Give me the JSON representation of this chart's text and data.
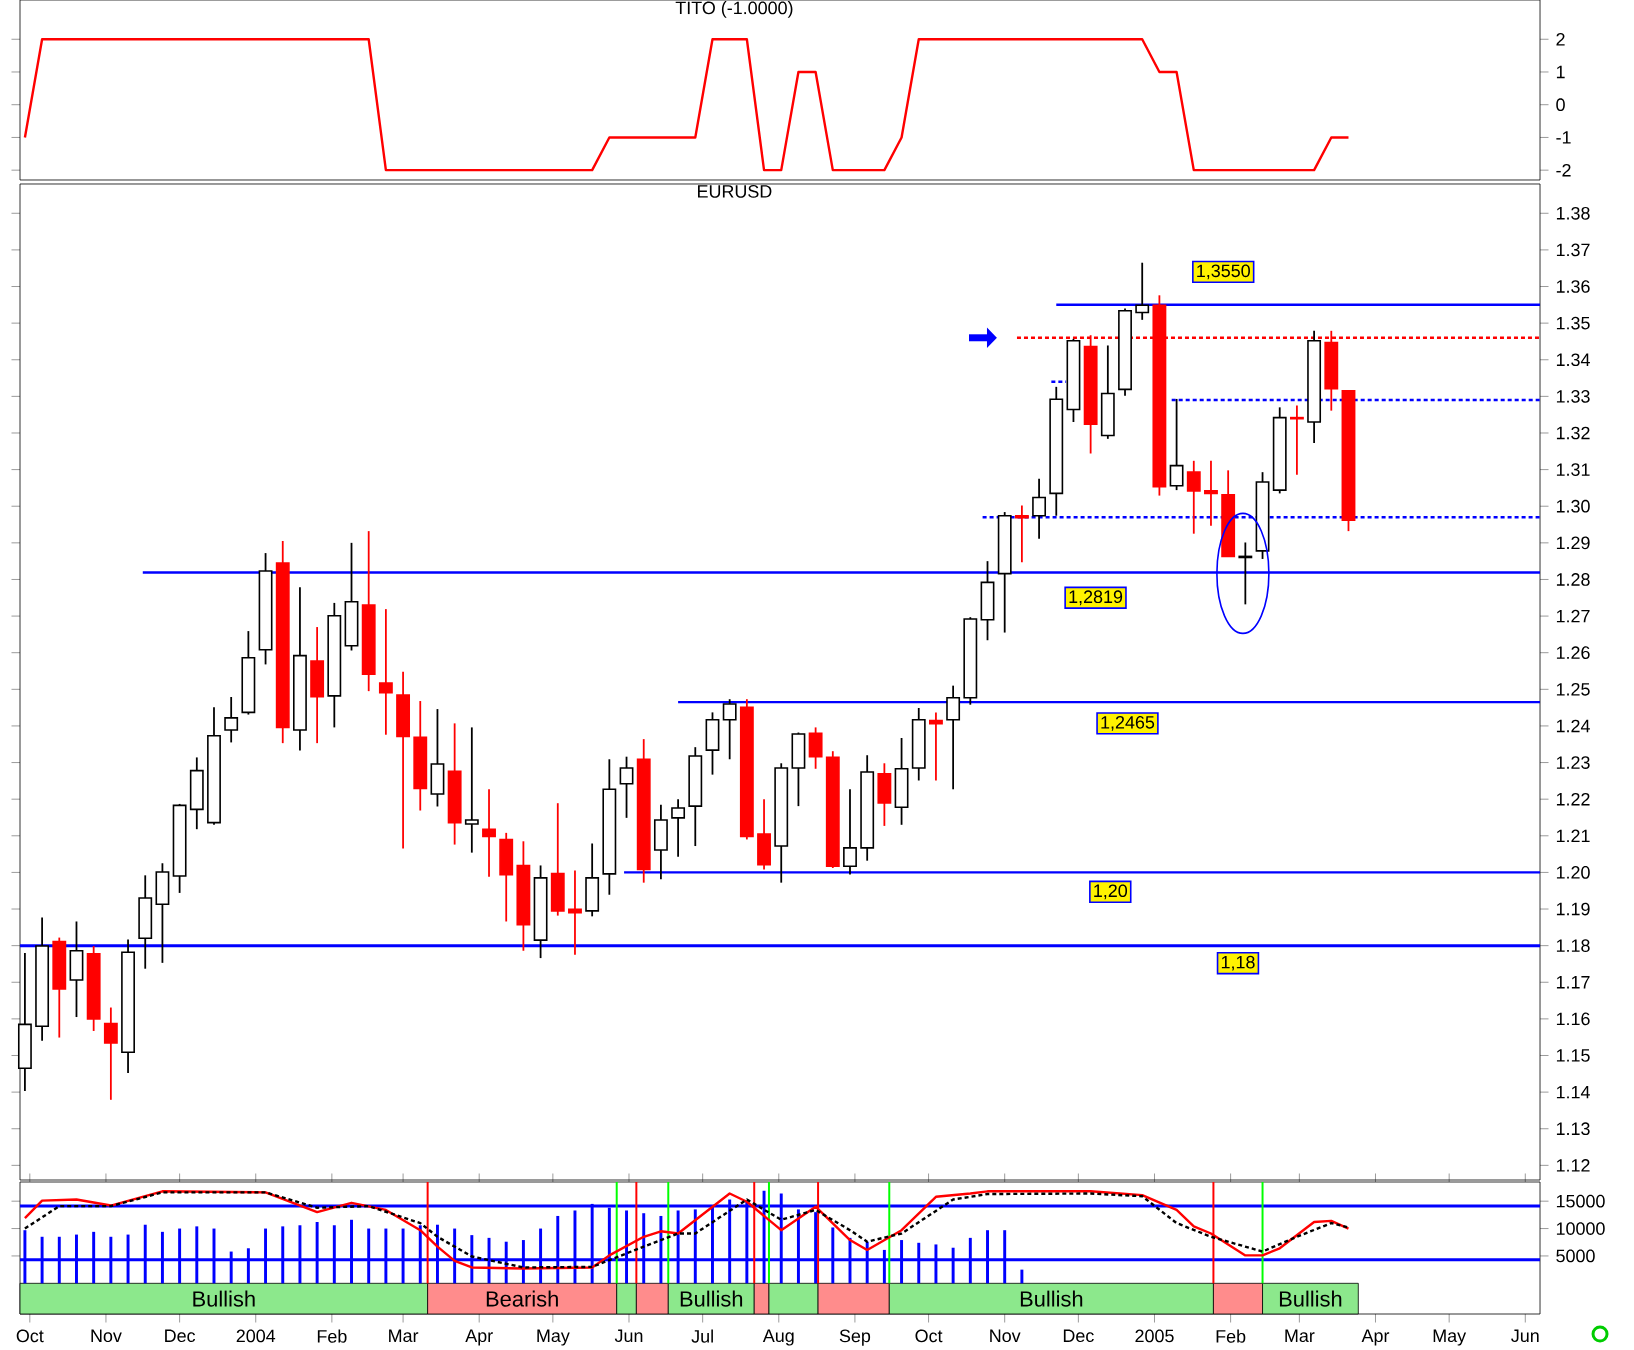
{
  "chart_data": [
    {
      "type": "line",
      "title": "TITO (-1.0000)",
      "tick_labels": "y",
      "xlim": [
        "2003-09-27",
        "2005-06-07"
      ],
      "ylim": [
        -2.3,
        3.2
      ],
      "yticks": [
        -2,
        -1,
        0,
        1,
        2
      ],
      "series": [
        {
          "color": "#ff0000",
          "x": [
            "2003-09-29",
            "2003-10-06",
            "2004-02-16",
            "2004-02-23",
            "2004-05-17",
            "2004-05-24",
            "2004-06-28",
            "2004-07-05",
            "2004-07-19",
            "2004-07-26",
            "2004-08-02",
            "2004-08-09",
            "2004-08-16",
            "2004-08-23",
            "2004-09-13",
            "2004-09-20",
            "2004-09-27",
            "2004-12-27",
            "2005-01-03",
            "2005-01-10",
            "2005-01-17",
            "2005-03-07",
            "2005-03-14",
            "2005-03-21"
          ],
          "values": [
            -1,
            2,
            2,
            -2,
            -2,
            -1,
            -1,
            2,
            2,
            -2,
            -2,
            1,
            1,
            -2,
            -2,
            -1,
            2,
            2,
            1,
            1,
            -2,
            -2,
            -1,
            -1
          ]
        }
      ]
    },
    {
      "type": "candlestick",
      "title": "EURUSD",
      "tick_labels": "y",
      "xlim": [
        "2003-09-27",
        "2005-06-07"
      ],
      "ylim": [
        1.116,
        1.388
      ],
      "yticks": [
        1.12,
        1.13,
        1.14,
        1.15,
        1.16,
        1.17,
        1.18,
        1.19,
        {
          "value": 1.2,
          "label": "1.20"
        },
        1.21,
        1.22,
        1.23,
        1.24,
        1.25,
        1.26,
        1.27,
        1.28,
        1.29,
        {
          "value": 1.3,
          "label": "1.30"
        },
        1.31,
        1.32,
        1.33,
        1.34,
        1.35,
        1.36,
        1.37,
        1.38
      ],
      "x": [
        "2003-09-29",
        "2003-10-06",
        "2003-10-13",
        "2003-10-20",
        "2003-10-27",
        "2003-11-03",
        "2003-11-10",
        "2003-11-17",
        "2003-11-24",
        "2003-12-01",
        "2003-12-08",
        "2003-12-15",
        "2003-12-22",
        "2003-12-29",
        "2004-01-05",
        "2004-01-12",
        "2004-01-19",
        "2004-01-26",
        "2004-02-02",
        "2004-02-09",
        "2004-02-16",
        "2004-02-23",
        "2004-03-01",
        "2004-03-08",
        "2004-03-15",
        "2004-03-22",
        "2004-03-29",
        "2004-04-05",
        "2004-04-12",
        "2004-04-19",
        "2004-04-26",
        "2004-05-03",
        "2004-05-10",
        "2004-05-17",
        "2004-05-24",
        "2004-05-31",
        "2004-06-07",
        "2004-06-14",
        "2004-06-21",
        "2004-06-28",
        "2004-07-05",
        "2004-07-12",
        "2004-07-19",
        "2004-07-26",
        "2004-08-02",
        "2004-08-09",
        "2004-08-16",
        "2004-08-23",
        "2004-08-30",
        "2004-09-06",
        "2004-09-13",
        "2004-09-20",
        "2004-09-27",
        "2004-10-04",
        "2004-10-11",
        "2004-10-18",
        "2004-10-25",
        "2004-11-01",
        "2004-11-08",
        "2004-11-15",
        "2004-11-22",
        "2004-11-29",
        "2004-12-06",
        "2004-12-13",
        "2004-12-20",
        "2004-12-27",
        "2005-01-03",
        "2005-01-10",
        "2005-01-17",
        "2005-01-24",
        "2005-01-31",
        "2005-02-07",
        "2005-02-14",
        "2005-02-21",
        "2005-02-28",
        "2005-03-07",
        "2005-03-14",
        "2005-03-21"
      ],
      "ohlc": [
        [
          1.1465,
          1.178,
          1.1403,
          1.1585
        ],
        [
          1.158,
          1.1877,
          1.154,
          1.1799
        ],
        [
          1.1811,
          1.1822,
          1.1549,
          1.1682
        ],
        [
          1.1706,
          1.1866,
          1.1605,
          1.1786
        ],
        [
          1.1778,
          1.1799,
          1.1567,
          1.16
        ],
        [
          1.1587,
          1.1631,
          1.1379,
          1.1534
        ],
        [
          1.1509,
          1.1817,
          1.1452,
          1.1782
        ],
        [
          1.182,
          1.1992,
          1.1737,
          1.193
        ],
        [
          1.1913,
          1.2025,
          1.1753,
          1.2001
        ],
        [
          1.199,
          1.2187,
          1.1944,
          1.2183
        ],
        [
          1.2172,
          1.2314,
          1.2118,
          1.2278
        ],
        [
          1.2136,
          1.2451,
          1.213,
          1.2373
        ],
        [
          1.2389,
          1.2479,
          1.2355,
          1.2422
        ],
        [
          1.2437,
          1.2659,
          1.2431,
          1.2586
        ],
        [
          1.2608,
          1.2872,
          1.2568,
          1.2823
        ],
        [
          1.2845,
          1.2905,
          1.2353,
          1.2396
        ],
        [
          1.2389,
          1.2779,
          1.2333,
          1.2592
        ],
        [
          1.2577,
          1.267,
          1.2353,
          1.248
        ],
        [
          1.2482,
          1.2736,
          1.2396,
          1.2701
        ],
        [
          1.2619,
          1.29,
          1.2606,
          1.2739
        ],
        [
          1.273,
          1.2932,
          1.2495,
          1.2541
        ],
        [
          1.2517,
          1.2719,
          1.2376,
          1.2491
        ],
        [
          1.2484,
          1.2548,
          1.2065,
          1.2371
        ],
        [
          1.2369,
          1.2468,
          1.2169,
          1.2229
        ],
        [
          1.2214,
          1.2446,
          1.218,
          1.2296
        ],
        [
          1.2276,
          1.2407,
          1.2076,
          1.2136
        ],
        [
          1.2132,
          1.2396,
          1.2054,
          1.2143
        ],
        [
          1.2118,
          1.2227,
          1.1988,
          1.2098
        ],
        [
          1.209,
          1.2108,
          1.1866,
          1.1994
        ],
        [
          1.2019,
          1.2085,
          1.1786,
          1.1857
        ],
        [
          1.1815,
          1.2019,
          1.1766,
          1.1985
        ],
        [
          1.1997,
          1.2189,
          1.1882,
          1.1895
        ],
        [
          1.1899,
          1.2005,
          1.1775,
          1.189
        ],
        [
          1.1895,
          1.2079,
          1.188,
          1.1985
        ],
        [
          1.1996,
          1.2309,
          1.1939,
          1.2227
        ],
        [
          1.2242,
          1.2316,
          1.2149,
          1.2285
        ],
        [
          1.2309,
          1.2364,
          1.1972,
          1.2008
        ],
        [
          1.2061,
          1.2185,
          1.1981,
          1.2143
        ],
        [
          1.2149,
          1.22,
          1.2043,
          1.2176
        ],
        [
          1.2181,
          1.2342,
          1.2072,
          1.2318
        ],
        [
          1.2334,
          1.2437,
          1.2267,
          1.2417
        ],
        [
          1.2417,
          1.2473,
          1.2309,
          1.246
        ],
        [
          1.2451,
          1.2473,
          1.209,
          1.2098
        ],
        [
          1.2105,
          1.22,
          1.2008,
          1.2021
        ],
        [
          1.2072,
          1.2298,
          1.1972,
          1.2285
        ],
        [
          1.2285,
          1.2382,
          1.2181,
          1.2378
        ],
        [
          1.238,
          1.2396,
          1.2283,
          1.2316
        ],
        [
          1.2314,
          1.2331,
          1.2012,
          1.2017
        ],
        [
          1.2017,
          1.2227,
          1.1994,
          1.2067
        ],
        [
          1.2067,
          1.232,
          1.2032,
          1.2274
        ],
        [
          1.2269,
          1.2298,
          1.2127,
          1.219
        ],
        [
          1.2178,
          1.2367,
          1.213,
          1.2283
        ],
        [
          1.2285,
          1.2449,
          1.2251,
          1.2417
        ],
        [
          1.2415,
          1.2437,
          1.2251,
          1.2406
        ],
        [
          1.2417,
          1.251,
          1.2227,
          1.2477
        ],
        [
          1.2477,
          1.2697,
          1.2458,
          1.2692
        ],
        [
          1.269,
          1.285,
          1.2634,
          1.2792
        ],
        [
          1.2816,
          1.2984,
          1.2655,
          1.2974
        ],
        [
          1.2974,
          1.3002,
          1.2847,
          1.2969
        ],
        [
          1.2974,
          1.3075,
          1.2911,
          1.3024
        ],
        [
          1.3035,
          1.3326,
          1.2974,
          1.3292
        ],
        [
          1.3264,
          1.3457,
          1.323,
          1.3452
        ],
        [
          1.3436,
          1.3467,
          1.3144,
          1.3224
        ],
        [
          1.3193,
          1.3439,
          1.3184,
          1.3308
        ],
        [
          1.3319,
          1.354,
          1.3302,
          1.3534
        ],
        [
          1.3529,
          1.3665,
          1.3509,
          1.3549
        ],
        [
          1.3549,
          1.3576,
          1.3029,
          1.3053
        ],
        [
          1.3056,
          1.3293,
          1.3044,
          1.3111
        ],
        [
          1.3093,
          1.3124,
          1.2925,
          1.3042
        ],
        [
          1.3042,
          1.3124,
          1.2947,
          1.3035
        ],
        [
          1.3031,
          1.3098,
          1.2863,
          1.2863
        ],
        [
          1.286,
          1.2901,
          1.2732,
          1.2863
        ],
        [
          1.2878,
          1.3093,
          1.2856,
          1.3066
        ],
        [
          1.3044,
          1.327,
          1.3035,
          1.3242
        ],
        [
          1.3242,
          1.3275,
          1.3086,
          1.3239
        ],
        [
          1.323,
          1.3479,
          1.3173,
          1.3452
        ],
        [
          1.3447,
          1.3479,
          1.3261,
          1.3321
        ],
        [
          1.3315,
          1.3315,
          1.2932,
          1.2962
        ]
      ],
      "colors": [
        "#ffffff",
        "#ffffff",
        "#ff0000",
        "#ffffff",
        "#ff0000",
        "#ff0000",
        "#ffffff",
        "#ffffff",
        "#ffffff",
        "#ffffff",
        "#ffffff",
        "#ffffff",
        "#ffffff",
        "#ffffff",
        "#ffffff",
        "#ff0000",
        "#ffffff",
        "#ff0000",
        "#ffffff",
        "#ffffff",
        "#ff0000",
        "#ff0000",
        "#ff0000",
        "#ff0000",
        "#ffffff",
        "#ff0000",
        "#ffffff",
        "#ff0000",
        "#ff0000",
        "#ff0000",
        "#ffffff",
        "#ff0000",
        "#ff0000",
        "#ffffff",
        "#ffffff",
        "#ffffff",
        "#ff0000",
        "#ffffff",
        "#ffffff",
        "#ffffff",
        "#ffffff",
        "#ffffff",
        "#ff0000",
        "#ff0000",
        "#ffffff",
        "#ffffff",
        "#ff0000",
        "#ff0000",
        "#ffffff",
        "#ffffff",
        "#ff0000",
        "#ffffff",
        "#ffffff",
        "#ff0000",
        "#ffffff",
        "#ffffff",
        "#ffffff",
        "#ffffff",
        "#ff0000",
        "#ffffff",
        "#ffffff",
        "#ffffff",
        "#ff0000",
        "#ffffff",
        "#ffffff",
        "#ffffff",
        "#ff0000",
        "#ffffff",
        "#ff0000",
        "#ff0000",
        "#ff0000",
        "#ffffff",
        "#ffffff",
        "#ffffff",
        "#ff0000",
        "#ffffff",
        "#ff0000",
        "#ff0000"
      ],
      "series": [
        {
          "type": "line",
          "color": "#0000ff",
          "x": [
            "2004-11-22",
            "2005-06-07"
          ],
          "values": [
            1.355,
            1.355
          ]
        },
        {
          "type": "line",
          "color": "#0000ff",
          "x": [
            "2003-11-16",
            "2005-06-07"
          ],
          "values": [
            1.2819,
            1.2819
          ]
        },
        {
          "type": "line",
          "color": "#0000ff",
          "x": [
            "2004-06-21",
            "2005-06-07"
          ],
          "values": [
            1.2465,
            1.2465
          ]
        },
        {
          "type": "line",
          "color": "#0000ff",
          "x": [
            "2004-05-30",
            "2005-06-07"
          ],
          "values": [
            1.2,
            1.2
          ]
        },
        {
          "type": "line",
          "color": "#ff0000",
          "line_style": "dashed",
          "x": [
            "2004-11-06",
            "2005-06-07"
          ],
          "values": [
            1.346,
            1.346
          ]
        },
        {
          "type": "line",
          "color": "#0000ff",
          "line_style": "dashed",
          "x": [
            "2005-01-08",
            "2005-06-07"
          ],
          "values": [
            1.329,
            1.329
          ]
        },
        {
          "type": "line",
          "color": "#0000ff",
          "line_style": "dashed",
          "x": [
            "2004-10-23",
            "2005-06-07"
          ],
          "values": [
            1.297,
            1.297
          ]
        },
        {
          "type": "line",
          "color": "#0000ff",
          "line_style": "dashed",
          "x": [
            "2004-11-20",
            "2004-11-26"
          ],
          "values": [
            1.334,
            1.334
          ]
        }
      ],
      "ref_lines": [
        {
          "axis": "y",
          "value": 1.18,
          "color": "#0000ff"
        }
      ],
      "annotations": [
        {
          "text": "1,3550",
          "x": "2005-01-29",
          "y": 1.364
        },
        {
          "text": "1,2819",
          "x": "2004-12-08",
          "y": 1.275
        },
        {
          "text": "1,2465",
          "x": "2004-12-21",
          "y": 1.2407
        },
        {
          "text": "1,20",
          "x": "2004-12-14",
          "y": 1.1947
        },
        {
          "text": "1,18",
          "x": "2005-02-04",
          "y": 1.1752
        }
      ]
    },
    {
      "type": "line",
      "xlim": [
        "2003-09-27",
        "2005-06-07"
      ],
      "ylim": [
        -5600,
        18500
      ],
      "yticks": [
        5000,
        10000,
        15000
      ],
      "series": [
        {
          "type": "bar",
          "color": "#0000ff",
          "x": [
            "2003-09-29",
            "2003-10-06",
            "2003-10-13",
            "2003-10-20",
            "2003-10-27",
            "2003-11-03",
            "2003-11-10",
            "2003-11-17",
            "2003-11-24",
            "2003-12-01",
            "2003-12-08",
            "2003-12-15",
            "2003-12-22",
            "2003-12-29",
            "2004-01-05",
            "2004-01-12",
            "2004-01-19",
            "2004-01-26",
            "2004-02-02",
            "2004-02-09",
            "2004-02-16",
            "2004-02-23",
            "2004-03-01",
            "2004-03-08",
            "2004-03-15",
            "2004-03-22",
            "2004-03-29",
            "2004-04-05",
            "2004-04-12",
            "2004-04-19",
            "2004-04-26",
            "2004-05-03",
            "2004-05-10",
            "2004-05-17",
            "2004-05-24",
            "2004-05-31",
            "2004-06-07",
            "2004-06-14",
            "2004-06-21",
            "2004-06-28",
            "2004-07-05",
            "2004-07-12",
            "2004-07-19",
            "2004-07-26",
            "2004-08-02",
            "2004-08-09",
            "2004-08-16",
            "2004-08-23",
            "2004-08-30",
            "2004-09-06",
            "2004-09-13",
            "2004-09-20",
            "2004-09-27",
            "2004-10-04",
            "2004-10-11",
            "2004-10-18",
            "2004-10-25",
            "2004-11-01",
            "2004-11-08"
          ],
          "values": [
            9700,
            8500,
            8500,
            8900,
            9400,
            8500,
            8900,
            10700,
            9400,
            10000,
            10400,
            10000,
            5800,
            6400,
            10000,
            10400,
            10600,
            11200,
            10600,
            11600,
            10000,
            10000,
            10000,
            10600,
            10700,
            10000,
            8800,
            8300,
            7600,
            7900,
            10000,
            12300,
            13300,
            14500,
            13800,
            13300,
            12800,
            12300,
            13300,
            13500,
            14100,
            15300,
            15000,
            16900,
            16400,
            13500,
            13000,
            10200,
            8300,
            7600,
            6100,
            7900,
            7400,
            7100,
            6500,
            8300,
            9700,
            9700,
            2500
          ]
        },
        {
          "type": "line",
          "color": "#ff0000",
          "x": [
            "2003-09-29",
            "2003-10-06",
            "2003-10-20",
            "2003-11-03",
            "2003-11-24",
            "2004-01-05",
            "2004-01-26",
            "2004-02-09",
            "2004-02-23",
            "2004-03-08",
            "2004-03-15",
            "2004-03-22",
            "2004-03-29",
            "2004-04-19",
            "2004-05-17",
            "2004-05-24",
            "2004-06-07",
            "2004-06-14",
            "2004-06-21",
            "2004-07-12",
            "2004-07-19",
            "2004-08-02",
            "2004-08-16",
            "2004-08-30",
            "2004-09-06",
            "2004-09-20",
            "2004-10-04",
            "2004-10-18",
            "2004-10-25",
            "2004-12-06",
            "2004-12-27",
            "2005-01-10",
            "2005-01-17",
            "2005-01-24",
            "2005-02-07",
            "2005-02-14",
            "2005-02-21",
            "2005-03-07",
            "2005-03-14",
            "2005-03-21"
          ],
          "values": [
            11900,
            15100,
            15300,
            14200,
            16800,
            16600,
            13000,
            14700,
            13400,
            9700,
            6700,
            4100,
            2900,
            2700,
            2900,
            5100,
            8500,
            9500,
            9100,
            16400,
            14900,
            9700,
            14000,
            7900,
            6100,
            9700,
            15800,
            16400,
            16800,
            16800,
            16100,
            13400,
            10400,
            9100,
            5100,
            5100,
            6400,
            11200,
            11400,
            10000
          ]
        },
        {
          "type": "line",
          "color": "#000000",
          "line_style": "dashed",
          "x": [
            "2003-09-29",
            "2003-10-13",
            "2003-11-03",
            "2003-11-24",
            "2004-01-05",
            "2004-01-26",
            "2004-02-16",
            "2004-03-08",
            "2004-03-15",
            "2004-03-29",
            "2004-04-19",
            "2004-05-17",
            "2004-06-07",
            "2004-06-21",
            "2004-06-28",
            "2004-07-19",
            "2004-08-02",
            "2004-08-16",
            "2004-08-30",
            "2004-09-06",
            "2004-09-20",
            "2004-10-11",
            "2004-10-25",
            "2004-12-06",
            "2004-12-27",
            "2005-01-10",
            "2005-01-24",
            "2005-02-14",
            "2005-02-28",
            "2005-03-14",
            "2005-03-21"
          ],
          "values": [
            10000,
            14100,
            14100,
            16600,
            16600,
            13800,
            14100,
            11000,
            8500,
            4900,
            2900,
            3000,
            6700,
            9100,
            9100,
            15300,
            11600,
            13400,
            9700,
            7600,
            9100,
            15300,
            16300,
            16400,
            15900,
            11000,
            8500,
            5800,
            8500,
            11000,
            10200
          ]
        }
      ],
      "ref_lines": [
        {
          "axis": "y",
          "value": 14100,
          "color": "#0000ff"
        },
        {
          "axis": "y",
          "value": 4300,
          "color": "#0000ff"
        },
        {
          "axis": "x",
          "value": "2004-03-11",
          "color": "#ff0000"
        },
        {
          "axis": "x",
          "value": "2004-05-27",
          "color": "#00ff00"
        },
        {
          "axis": "x",
          "value": "2004-06-04",
          "color": "#ff0000"
        },
        {
          "axis": "x",
          "value": "2004-06-17",
          "color": "#00ff00"
        },
        {
          "axis": "x",
          "value": "2004-07-22",
          "color": "#ff0000"
        },
        {
          "axis": "x",
          "value": "2004-07-28",
          "color": "#00ff00"
        },
        {
          "axis": "x",
          "value": "2004-08-17",
          "color": "#ff0000"
        },
        {
          "axis": "x",
          "value": "2004-09-15",
          "color": "#00ff00"
        },
        {
          "axis": "x",
          "value": "2005-01-25",
          "color": "#ff0000"
        },
        {
          "axis": "x",
          "value": "2005-02-14",
          "color": "#00ff00"
        }
      ],
      "xticks": [
        {
          "value": "2003-10-01",
          "label": "Oct"
        },
        {
          "value": "2003-11-01",
          "label": "Nov"
        },
        {
          "value": "2003-12-01",
          "label": "Dec"
        },
        {
          "value": "2004-01-01",
          "label": "2004"
        },
        {
          "value": "2004-02-01",
          "label": "Feb"
        },
        {
          "value": "2004-03-01",
          "label": "Mar"
        },
        {
          "value": "2004-04-01",
          "label": "Apr"
        },
        {
          "value": "2004-05-01",
          "label": "May"
        },
        {
          "value": "2004-06-01",
          "label": "Jun"
        },
        {
          "value": "2004-07-01",
          "label": "Jul"
        },
        {
          "value": "2004-08-01",
          "label": "Aug"
        },
        {
          "value": "2004-09-01",
          "label": "Sep"
        },
        {
          "value": "2004-10-01",
          "label": "Oct"
        },
        {
          "value": "2004-11-01",
          "label": "Nov"
        },
        {
          "value": "2004-12-01",
          "label": "Dec"
        },
        {
          "value": "2005-01-01",
          "label": "2005"
        },
        {
          "value": "2005-02-01",
          "label": "Feb"
        },
        {
          "value": "2005-03-01",
          "label": "Mar"
        },
        {
          "value": "2005-04-01",
          "label": "Apr"
        },
        {
          "value": "2005-05-01",
          "label": "May"
        },
        {
          "value": "2005-06-01",
          "label": "Jun"
        }
      ],
      "bands": [
        {
          "axis": "x",
          "from": "2003-09-27",
          "to": "2004-03-11",
          "label": "Bullish",
          "color": "#8ce88c"
        },
        {
          "axis": "x",
          "from": "2004-03-11",
          "to": "2004-05-27",
          "label": "Bearish",
          "color": "#ff8c8c"
        },
        {
          "axis": "x",
          "from": "2004-05-27",
          "to": "2004-06-04",
          "color": "#8ce88c"
        },
        {
          "axis": "x",
          "from": "2004-06-04",
          "to": "2004-06-17",
          "color": "#ff8c8c"
        },
        {
          "axis": "x",
          "from": "2004-06-17",
          "to": "2004-07-22",
          "label": "Bullish",
          "color": "#8ce88c"
        },
        {
          "axis": "x",
          "from": "2004-07-22",
          "to": "2004-07-28",
          "color": "#ff8c8c"
        },
        {
          "axis": "x",
          "from": "2004-07-28",
          "to": "2004-08-17",
          "color": "#8ce88c"
        },
        {
          "axis": "x",
          "from": "2004-08-17",
          "to": "2004-09-15",
          "color": "#ff8c8c"
        },
        {
          "axis": "x",
          "from": "2004-09-15",
          "to": "2005-01-25",
          "label": "Bullish",
          "color": "#8ce88c"
        },
        {
          "axis": "x",
          "from": "2005-01-25",
          "to": "2005-02-14",
          "color": "#ff8c8c"
        },
        {
          "axis": "x",
          "from": "2005-02-14",
          "to": "2005-03-25",
          "label": "Bullish",
          "color": "#8ce88c"
        }
      ]
    }
  ]
}
